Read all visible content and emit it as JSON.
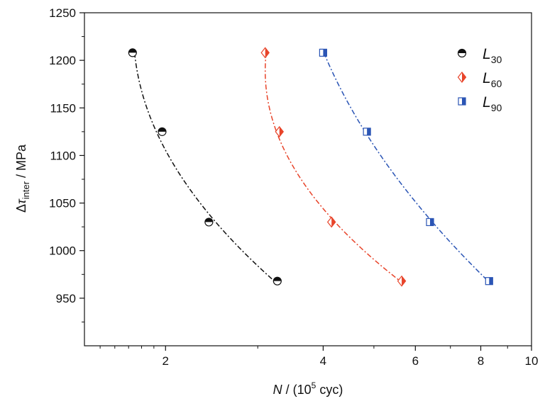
{
  "chart_data": {
    "type": "scatter",
    "x_scale": "log",
    "xlim": [
      1.4,
      10.0
    ],
    "ylim": [
      900,
      1250
    ],
    "x_ticks": [
      2,
      4,
      6,
      8,
      10
    ],
    "x_tick_labels": [
      "2",
      "4",
      "6",
      "8",
      "10"
    ],
    "y_ticks": [
      950,
      1000,
      1050,
      1100,
      1150,
      1200,
      1250
    ],
    "y_tick_labels": [
      "950",
      "1000",
      "1050",
      "1100",
      "1150",
      "1200",
      "1250"
    ],
    "xlabel": {
      "italic": "N",
      "text": " / (10",
      "sup": "5",
      "end": " cyc)"
    },
    "ylabel": {
      "prefix": "Δ",
      "symbol": "τ",
      "sub": "inter",
      "end": " / MPa"
    },
    "legend_position": "top-right",
    "grid": false,
    "series": [
      {
        "name": "L30",
        "name_main": "L",
        "name_sub": "30",
        "color": "#111111",
        "marker": "circle-half",
        "fit_style": "dash-dot",
        "x": [
          1.73,
          1.97,
          2.42,
          3.27
        ],
        "y": [
          1208,
          1125,
          1030,
          968
        ]
      },
      {
        "name": "L60",
        "name_main": "L",
        "name_sub": "60",
        "color": "#e8442a",
        "marker": "diamond-half",
        "fit_style": "dash-dot",
        "x": [
          3.1,
          3.3,
          4.15,
          5.65
        ],
        "y": [
          1208,
          1125,
          1030,
          968
        ]
      },
      {
        "name": "L90",
        "name_main": "L",
        "name_sub": "90",
        "color": "#2b55b5",
        "marker": "square-half",
        "fit_style": "dash-dot",
        "x": [
          4.0,
          4.85,
          6.4,
          8.3
        ],
        "y": [
          1208,
          1125,
          1030,
          968
        ]
      }
    ]
  }
}
